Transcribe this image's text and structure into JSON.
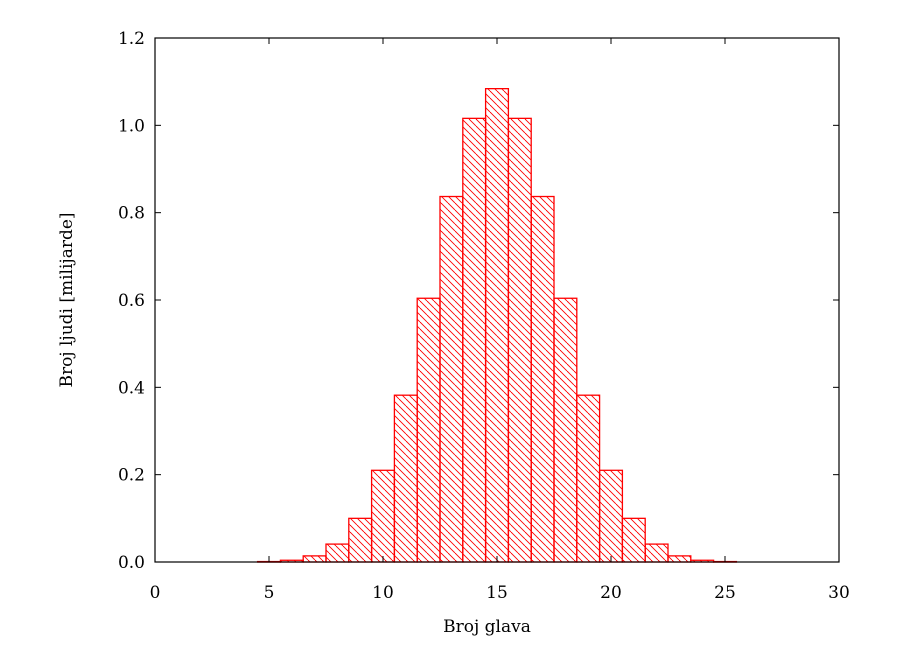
{
  "chart_data": {
    "type": "bar",
    "title": "",
    "xlabel": "Broj glava",
    "ylabel": "Broj ljudi [milijarde]",
    "xlim": [
      0,
      30
    ],
    "ylim": [
      0.0,
      1.2
    ],
    "xticks": [
      "0",
      "5",
      "10",
      "15",
      "20",
      "25",
      "30"
    ],
    "yticks": [
      "0.0",
      "0.2",
      "0.4",
      "0.6",
      "0.8",
      "1.0",
      "1.2"
    ],
    "grid": false,
    "legend": null,
    "bar_color": "#ff0000",
    "bar_fill": "diagonal-hatch",
    "categories": [
      5,
      6,
      7,
      8,
      9,
      10,
      11,
      12,
      13,
      14,
      15,
      16,
      17,
      18,
      19,
      20,
      21,
      22,
      23,
      24,
      25
    ],
    "values": [
      0.001,
      0.004,
      0.014,
      0.041,
      0.1,
      0.21,
      0.382,
      0.604,
      0.837,
      1.016,
      1.084,
      1.016,
      0.837,
      0.604,
      0.382,
      0.21,
      0.1,
      0.041,
      0.014,
      0.004,
      0.001
    ]
  }
}
